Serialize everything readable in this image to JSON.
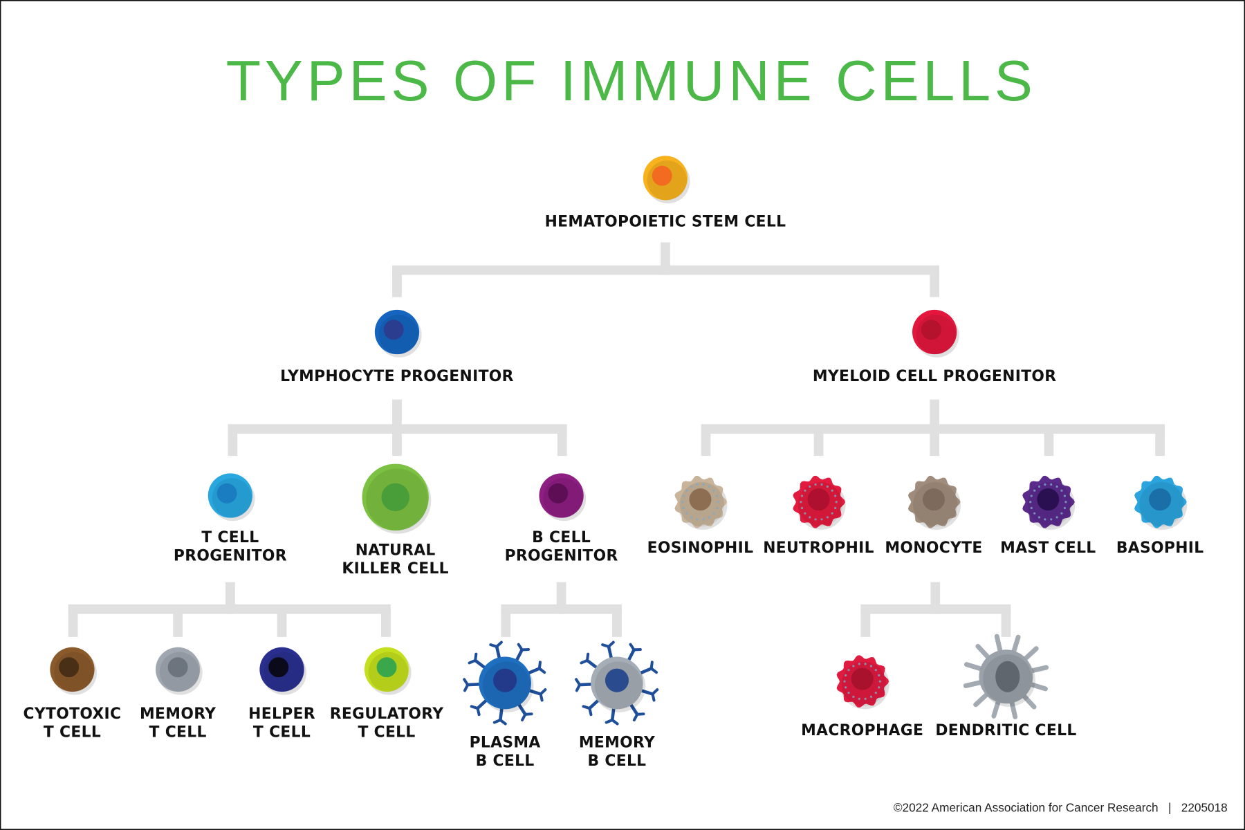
{
  "title": "TYPES OF IMMUNE CELLS",
  "title_color": "#4cb847",
  "connector_color": "#e0e0e0",
  "footer": "©2022 American Association for Cancer Research   |   2205018",
  "cells": {
    "stem": {
      "label": [
        "HEMATOPOIETIC STEM CELL"
      ],
      "shape": "round",
      "color": "#f7b21e",
      "nucleus": "#f26b21"
    },
    "lymphocyte": {
      "label": [
        "LYMPHOCYTE PROGENITOR"
      ],
      "shape": "round",
      "color": "#1565c0",
      "nucleus": "#2a3d8f"
    },
    "myeloid": {
      "label": [
        "MYELOID CELL PROGENITOR"
      ],
      "shape": "round",
      "color": "#e3173e",
      "nucleus": "#b5122e"
    },
    "t_prog": {
      "label": [
        "T CELL",
        "PROGENITOR"
      ],
      "shape": "round",
      "color": "#29a8e0",
      "nucleus": "#1a7cc1"
    },
    "nk": {
      "label": [
        "NATURAL",
        "KILLER CELL"
      ],
      "shape": "round",
      "color": "#7cc142",
      "nucleus": "#4a9e3a"
    },
    "b_prog": {
      "label": [
        "B CELL",
        "PROGENITOR"
      ],
      "shape": "round",
      "color": "#8e1e82",
      "nucleus": "#5e0e55"
    },
    "eosinophil": {
      "label": [
        "EOSINOPHIL"
      ],
      "shape": "bumpy",
      "color": "#c8b49a",
      "nucleus": "#8d6e52"
    },
    "neutrophil": {
      "label": [
        "NEUTROPHIL"
      ],
      "shape": "bumpy",
      "color": "#e31b3e",
      "nucleus": "#b01030"
    },
    "monocyte": {
      "label": [
        "MONOCYTE"
      ],
      "shape": "bumpy",
      "color": "#a08c7c",
      "nucleus": "#7d6a5c"
    },
    "mast": {
      "label": [
        "MAST CELL"
      ],
      "shape": "bumpy",
      "color": "#5b2b8c",
      "nucleus": "#2a1050"
    },
    "basophil": {
      "label": [
        "BASOPHIL"
      ],
      "shape": "bumpy",
      "color": "#2ba3dc",
      "nucleus": "#1a6fa8"
    },
    "cytotoxic_t": {
      "label": [
        "CYTOTOXIC",
        "T CELL"
      ],
      "shape": "round",
      "color": "#8b5a2b",
      "nucleus": "#4a2f17"
    },
    "memory_t": {
      "label": [
        "MEMORY",
        "T CELL"
      ],
      "shape": "round",
      "color": "#a0a7b0",
      "nucleus": "#6c747e"
    },
    "helper_t": {
      "label": [
        "HELPER",
        "T CELL"
      ],
      "shape": "round",
      "color": "#2a2f8f",
      "nucleus": "#0a0a1a"
    },
    "regulatory_t": {
      "label": [
        "REGULATORY",
        "T CELL"
      ],
      "shape": "round",
      "color": "#c4df1e",
      "nucleus": "#3aa84a"
    },
    "plasma_b": {
      "label": [
        "PLASMA",
        "B CELL"
      ],
      "shape": "spiked",
      "color": "#1f6fc0",
      "nucleus": "#233a8a",
      "spikes": "#1f4e9a"
    },
    "memory_b": {
      "label": [
        "MEMORY",
        "B CELL"
      ],
      "shape": "spiked",
      "color": "#a5adb6",
      "nucleus": "#2a4c8f",
      "spikes": "#1f4e9a"
    },
    "macrophage": {
      "label": [
        "MACROPHAGE"
      ],
      "shape": "bumpy",
      "color": "#e01b40",
      "nucleus": "#a8122d"
    },
    "dendritic": {
      "label": [
        "DENDRITIC CELL"
      ],
      "shape": "dendritic",
      "color": "#9aa1a9",
      "nucleus": "#5f666e",
      "spikes": "#a3aab2"
    }
  }
}
